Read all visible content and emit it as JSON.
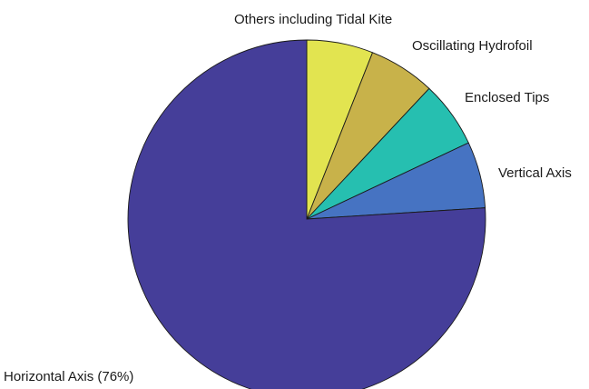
{
  "chart_data": {
    "type": "pie",
    "start_angle_deg": 90,
    "direction": "clockwise",
    "legend": "none",
    "slices": [
      {
        "label": "Others including Tidal Kite",
        "value": 6,
        "color": "#e2e450"
      },
      {
        "label": "Oscillating Hydrofoil",
        "value": 6,
        "color": "#c8b24a"
      },
      {
        "label": "Enclosed Tips",
        "value": 6,
        "color": "#26bfb0"
      },
      {
        "label": "Vertical Axis",
        "value": 6,
        "color": "#4673c2"
      },
      {
        "label": "Horizontal Axis (76%)",
        "value": 76,
        "color": "#453e99"
      }
    ]
  }
}
